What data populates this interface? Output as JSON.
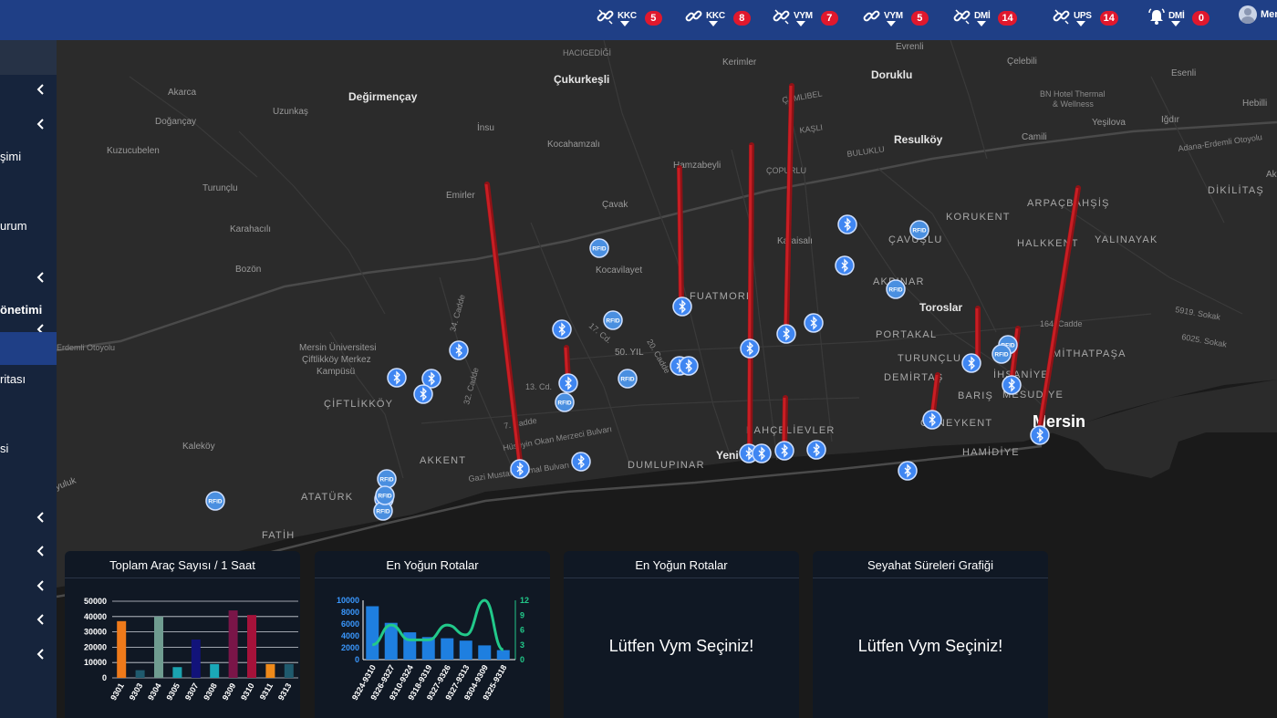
{
  "topbar": {
    "items": [
      {
        "label": "KKC",
        "count": "5",
        "icon": "link-broken-icon"
      },
      {
        "label": "KKC",
        "count": "8",
        "icon": "link-icon"
      },
      {
        "label": "VYM",
        "count": "7",
        "icon": "link-broken-icon"
      },
      {
        "label": "VYM",
        "count": "5",
        "icon": "link-icon"
      },
      {
        "label": "DMİ",
        "count": "14",
        "icon": "link-broken-icon"
      },
      {
        "label": "UPS",
        "count": "14",
        "icon": "link-broken-icon"
      },
      {
        "label": "DMİ",
        "count": "0",
        "icon": "bell-icon"
      }
    ],
    "user_name": "Mer"
  },
  "sidebar": {
    "items": [
      {
        "label": "şimi",
        "bold": false
      },
      {
        "label": "urum",
        "bold": false
      },
      {
        "label": "önetimi",
        "bold": true
      },
      {
        "label": "ritası",
        "bold": false
      },
      {
        "label": "si",
        "bold": false
      }
    ]
  },
  "map": {
    "places": [
      {
        "text": "Akarca"
      },
      {
        "text": "Değirmençay"
      },
      {
        "text": "Uzunkaş"
      },
      {
        "text": "Doğançay"
      },
      {
        "text": "Kuzucubelen"
      },
      {
        "text": "İnsu"
      },
      {
        "text": "Çukurkeşli"
      },
      {
        "text": "Kocahamzalı"
      },
      {
        "text": "Turunçlu"
      },
      {
        "text": "Emirler"
      },
      {
        "text": "Karahacılı"
      },
      {
        "text": "Bozön"
      },
      {
        "text": "Hamzabeyli"
      },
      {
        "text": "Çavak"
      },
      {
        "text": "Kocavilayet"
      },
      {
        "text": "Kerimler"
      },
      {
        "text": "Evrenli"
      },
      {
        "text": "Doruklu"
      },
      {
        "text": "Çelebili"
      },
      {
        "text": "Esenli"
      },
      {
        "text": "Resulköy"
      },
      {
        "text": "Camili"
      },
      {
        "text": "Yeşilova"
      },
      {
        "text": "Iğdır"
      },
      {
        "text": "Hebilli"
      },
      {
        "text": "Toroslar"
      },
      {
        "text": "Mersin"
      },
      {
        "text": "Kaleköy"
      },
      {
        "text": "Mersin Üniversitesi"
      },
      {
        "text": "Çiftlikköy Merkez"
      },
      {
        "text": "Kampüsü"
      },
      {
        "text": "ÇİFTLİKKÖY"
      },
      {
        "text": "AKKENT"
      },
      {
        "text": "ATATÜRK"
      },
      {
        "text": "FATİH"
      },
      {
        "text": "DUMLUPINAR"
      },
      {
        "text": "BAHÇELİEVLER"
      },
      {
        "text": "Yeni"
      },
      {
        "text": "FUATMORE"
      },
      {
        "text": "50. YIL"
      },
      {
        "text": "KORUKENT"
      },
      {
        "text": "ÇAVUŞLU"
      },
      {
        "text": "AKPINAR"
      },
      {
        "text": "HALKKENT"
      },
      {
        "text": "YALINAYAK"
      },
      {
        "text": "PORTAKAL"
      },
      {
        "text": "TURUNÇLU"
      },
      {
        "text": "DEMİRTAŞ"
      },
      {
        "text": "İHSANİYE"
      },
      {
        "text": "MİTHATPAŞA"
      },
      {
        "text": "BARIŞ"
      },
      {
        "text": "MESUDİYE"
      },
      {
        "text": "GÜNEYKENT"
      },
      {
        "text": "HAMİDİYE"
      },
      {
        "text": "ÇAMLIBEL"
      },
      {
        "text": "KAŞLI"
      },
      {
        "text": "BULUKLU"
      },
      {
        "text": "ÇOPURLU"
      },
      {
        "text": "Karaisalı"
      },
      {
        "text": "ARPAÇBAHŞİŞ"
      },
      {
        "text": "DİKİLİTAŞ"
      },
      {
        "text": "BN Hotel Thermal"
      },
      {
        "text": "& Wellness"
      },
      {
        "text": "Adana-Erdemli Otoyolu"
      },
      {
        "text": "34. Cadde"
      },
      {
        "text": "32. Cadde"
      },
      {
        "text": "13. Cd."
      },
      {
        "text": "7. Cadde"
      },
      {
        "text": "20. Cadde"
      },
      {
        "text": "17. Cd."
      },
      {
        "text": "Hüseyin Okan Merzeci Bulvarı"
      },
      {
        "text": "Gazi Mustafa Kemal Bulvarı"
      },
      {
        "text": "164. Cadde"
      },
      {
        "text": "5919. Sokak"
      },
      {
        "text": "6025. Sokak"
      },
      {
        "text": "Erdemli Otoyolu"
      },
      {
        "text": "yuluk"
      },
      {
        "text": "Ak"
      },
      {
        "text": "HACIGEDİĞİ"
      }
    ],
    "rfid_label": "RFID",
    "colors": {
      "bar": "#c81e24",
      "bluetooth": "#3f86f2",
      "rfid": "#4a8fe0",
      "land": "#2b2b2b",
      "sea": "#1a1a1a"
    }
  },
  "panels": [
    {
      "title": "Toplam Araç Sayısı / 1 Saat",
      "chart_data": {
        "type": "bar",
        "categories": [
          "9301",
          "9303",
          "9304",
          "9305",
          "9307",
          "9308",
          "9309",
          "9310",
          "9311",
          "9313"
        ],
        "values": [
          37000,
          5000,
          40000,
          7000,
          25000,
          9000,
          44000,
          41000,
          9000,
          9000
        ],
        "colors": [
          "#ef7a1a",
          "#1f5a6e",
          "#6f9c90",
          "#1ba3b0",
          "#12137a",
          "#1aa8b8",
          "#7a1548",
          "#a5123a",
          "#ef8a1a",
          "#1f5a6e"
        ],
        "ylim": [
          0,
          50000
        ],
        "yticks": [
          0,
          10000,
          20000,
          30000,
          40000,
          50000
        ],
        "grid": true
      }
    },
    {
      "title": "En Yoğun Rotalar",
      "chart_data": {
        "type": "bar",
        "categories": [
          "9324-9310",
          "9326-9327",
          "9310-9324",
          "9318-9319",
          "9327-9326",
          "9327-9313",
          "9304-9309",
          "9325-9318"
        ],
        "series": [
          {
            "values": [
              9000,
              6200,
              4600,
              3800,
              3600,
              3200,
              2400,
              1600
            ],
            "color": "#1e7fe0"
          },
          {
            "values": [
              3,
              7,
              4,
              4,
              7,
              5,
              12,
              2
            ],
            "color": "#22c98a",
            "type": "line",
            "axis": "right"
          }
        ],
        "ylim": [
          0,
          10000
        ],
        "yticks": [
          0,
          2000,
          4000,
          6000,
          8000,
          10000
        ],
        "y2lim": [
          0,
          12
        ],
        "y2ticks": [
          0,
          3,
          6,
          9,
          12
        ]
      }
    },
    {
      "title": "En Yoğun Rotalar",
      "message": "Lütfen Vym Seçiniz!"
    },
    {
      "title": "Seyahat Süreleri Grafiği",
      "message": "Lütfen Vym Seçiniz!"
    }
  ]
}
